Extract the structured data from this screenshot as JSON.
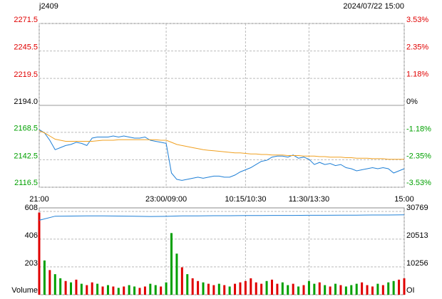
{
  "chart_data": [
    {
      "type": "line",
      "title": "j2409",
      "subtitle": "2024/07/22 15:00",
      "x": [
        0,
        5,
        10,
        15,
        20,
        25,
        30,
        35,
        40,
        45,
        50,
        55,
        60,
        65,
        70,
        75,
        80,
        85,
        90,
        95,
        100,
        105,
        110,
        115,
        120,
        125,
        130,
        135,
        140,
        145,
        150,
        155,
        160,
        165,
        170,
        175,
        180,
        185,
        190,
        195,
        200,
        205,
        210,
        215,
        220,
        225,
        230,
        235,
        240,
        245,
        250,
        255,
        260,
        265,
        270,
        275,
        280,
        285,
        290,
        295,
        300,
        305,
        310,
        315,
        320,
        325,
        330,
        335,
        340,
        345
      ],
      "xlim": [
        0,
        345
      ],
      "xticks": [
        {
          "value": 0,
          "label": "21:00"
        },
        {
          "value": 120,
          "label": "23:00/09:00"
        },
        {
          "value": 195,
          "label": "10:15/10:30"
        },
        {
          "value": 255,
          "label": "11:30/13:30"
        },
        {
          "value": 345,
          "label": "15:00"
        }
      ],
      "ylim": [
        2116.5,
        2271.5
      ],
      "yticks": [
        2271.5,
        2245.5,
        2219.5,
        {
          "value": 2194,
          "label": "2194.0"
        },
        2168.5,
        2142.5,
        2116.5
      ],
      "y2lim": [
        -3.53,
        3.53
      ],
      "y2ticks": [
        {
          "value": 3.53,
          "label": "3.53%"
        },
        {
          "value": 2.35,
          "label": "2.35%"
        },
        {
          "value": 1.18,
          "label": "1.18%"
        },
        {
          "value": 0,
          "label": "0%"
        },
        {
          "value": -1.18,
          "label": "-1.18%"
        },
        {
          "value": -2.35,
          "label": "-2.35%"
        },
        {
          "value": -3.53,
          "label": "-3.53%"
        }
      ],
      "grid": true,
      "series": [
        {
          "color": "#1e7fd6",
          "values": [
            2171,
            2168,
            2161,
            2152,
            2154,
            2156,
            2157,
            2159,
            2158,
            2156,
            2163,
            2164,
            2164,
            2164,
            2165,
            2164,
            2165,
            2164,
            2163,
            2163,
            2164,
            2161,
            2160,
            2159,
            2158,
            2130,
            2124,
            2123,
            2124,
            2125,
            2126,
            2125,
            2126,
            2127,
            2127,
            2126,
            2126,
            2128,
            2131,
            2133,
            2135,
            2138,
            2141,
            2142,
            2145,
            2146,
            2146,
            2145,
            2147,
            2144,
            2145,
            2143,
            2138,
            2140,
            2138,
            2139,
            2137,
            2138,
            2135,
            2134,
            2132,
            2133,
            2134,
            2135,
            2134,
            2135,
            2134,
            2130,
            2132,
            2134
          ]
        },
        {
          "color": "#f0a020",
          "values": [
            2170,
            2168,
            2165,
            2162,
            2161,
            2160,
            2160,
            2160,
            2160,
            2160,
            2160,
            2160.5,
            2161,
            2161,
            2161,
            2161.5,
            2161.5,
            2161.5,
            2161.5,
            2161.5,
            2161.5,
            2161.5,
            2161.5,
            2161,
            2161,
            2159,
            2157,
            2156,
            2155,
            2154,
            2153,
            2152,
            2151.5,
            2151,
            2150.5,
            2150,
            2149.5,
            2149,
            2149,
            2148.5,
            2148,
            2148,
            2147.5,
            2147.5,
            2147,
            2147,
            2147,
            2146.5,
            2146.5,
            2146.5,
            2146,
            2146,
            2146,
            2145.5,
            2145.5,
            2145,
            2145,
            2145,
            2144.5,
            2144.5,
            2144,
            2144,
            2144,
            2143.5,
            2143.5,
            2143.5,
            2143,
            2143,
            2143,
            2143
          ]
        }
      ]
    },
    {
      "type": "bar",
      "x": [
        0,
        5,
        10,
        15,
        20,
        25,
        30,
        35,
        40,
        45,
        50,
        55,
        60,
        65,
        70,
        75,
        80,
        85,
        90,
        95,
        100,
        105,
        110,
        115,
        120,
        125,
        130,
        135,
        140,
        145,
        150,
        155,
        160,
        165,
        170,
        175,
        180,
        185,
        190,
        195,
        200,
        205,
        210,
        215,
        220,
        225,
        230,
        235,
        240,
        245,
        250,
        255,
        260,
        265,
        270,
        275,
        280,
        285,
        290,
        295,
        300,
        305,
        310,
        315,
        320,
        325,
        330,
        335,
        340,
        345
      ],
      "xlim": [
        0,
        345
      ],
      "values": [
        600,
        250,
        180,
        150,
        120,
        100,
        90,
        110,
        80,
        70,
        90,
        80,
        60,
        70,
        60,
        50,
        60,
        70,
        60,
        50,
        60,
        80,
        70,
        60,
        90,
        450,
        300,
        200,
        150,
        120,
        100,
        90,
        80,
        70,
        80,
        70,
        60,
        80,
        90,
        100,
        120,
        90,
        80,
        100,
        110,
        80,
        90,
        70,
        80,
        60,
        70,
        100,
        80,
        90,
        70,
        60,
        80,
        70,
        60,
        70,
        80,
        90,
        70,
        60,
        80,
        70,
        90,
        100,
        110,
        120
      ],
      "colors": [
        "#e00000",
        "#00a000",
        "#e00000",
        "#00a000",
        "#00a000",
        "#e00000",
        "#00a000",
        "#e00000",
        "#00a000",
        "#e00000",
        "#e00000",
        "#00a000",
        "#e00000",
        "#00a000",
        "#e00000",
        "#00a000",
        "#e00000",
        "#00a000",
        "#00a000",
        "#e00000",
        "#e00000",
        "#00a000",
        "#00a000",
        "#e00000",
        "#00a000",
        "#00a000",
        "#00a000",
        "#e00000",
        "#00a000",
        "#e00000",
        "#e00000",
        "#00a000",
        "#e00000",
        "#e00000",
        "#00a000",
        "#e00000",
        "#00a000",
        "#e00000",
        "#e00000",
        "#e00000",
        "#e00000",
        "#e00000",
        "#e00000",
        "#00a000",
        "#e00000",
        "#e00000",
        "#00a000",
        "#00a000",
        "#e00000",
        "#00a000",
        "#e00000",
        "#00a000",
        "#00a000",
        "#e00000",
        "#00a000",
        "#e00000",
        "#00a000",
        "#e00000",
        "#00a000",
        "#00a000",
        "#00a000",
        "#e00000",
        "#e00000",
        "#e00000",
        "#00a000",
        "#e00000",
        "#00a000",
        "#00a000",
        "#e00000",
        "#e00000"
      ],
      "ylim": [
        0,
        608
      ],
      "yticks": [
        {
          "value": 0,
          "label": "Volume"
        },
        203,
        406,
        608
      ],
      "y2lim": [
        0,
        30769
      ],
      "y2ticks": [
        {
          "value": 0,
          "label": "OI"
        },
        10256,
        20513,
        30769
      ],
      "grid": true,
      "series": [
        {
          "color": "#1e7fd6",
          "axis": "y2",
          "x": [
            0,
            15,
            30,
            45,
            60,
            75,
            90,
            105,
            120,
            135,
            150,
            165,
            180,
            195,
            210,
            225,
            240,
            255,
            270,
            285,
            300,
            315,
            330,
            345
          ],
          "values": [
            27500,
            29000,
            29050,
            29100,
            29100,
            29050,
            29000,
            28900,
            28950,
            29100,
            29150,
            29200,
            29200,
            29250,
            29250,
            29300,
            29300,
            29350,
            29350,
            29400,
            29400,
            29450,
            29450,
            29500
          ]
        }
      ]
    }
  ]
}
